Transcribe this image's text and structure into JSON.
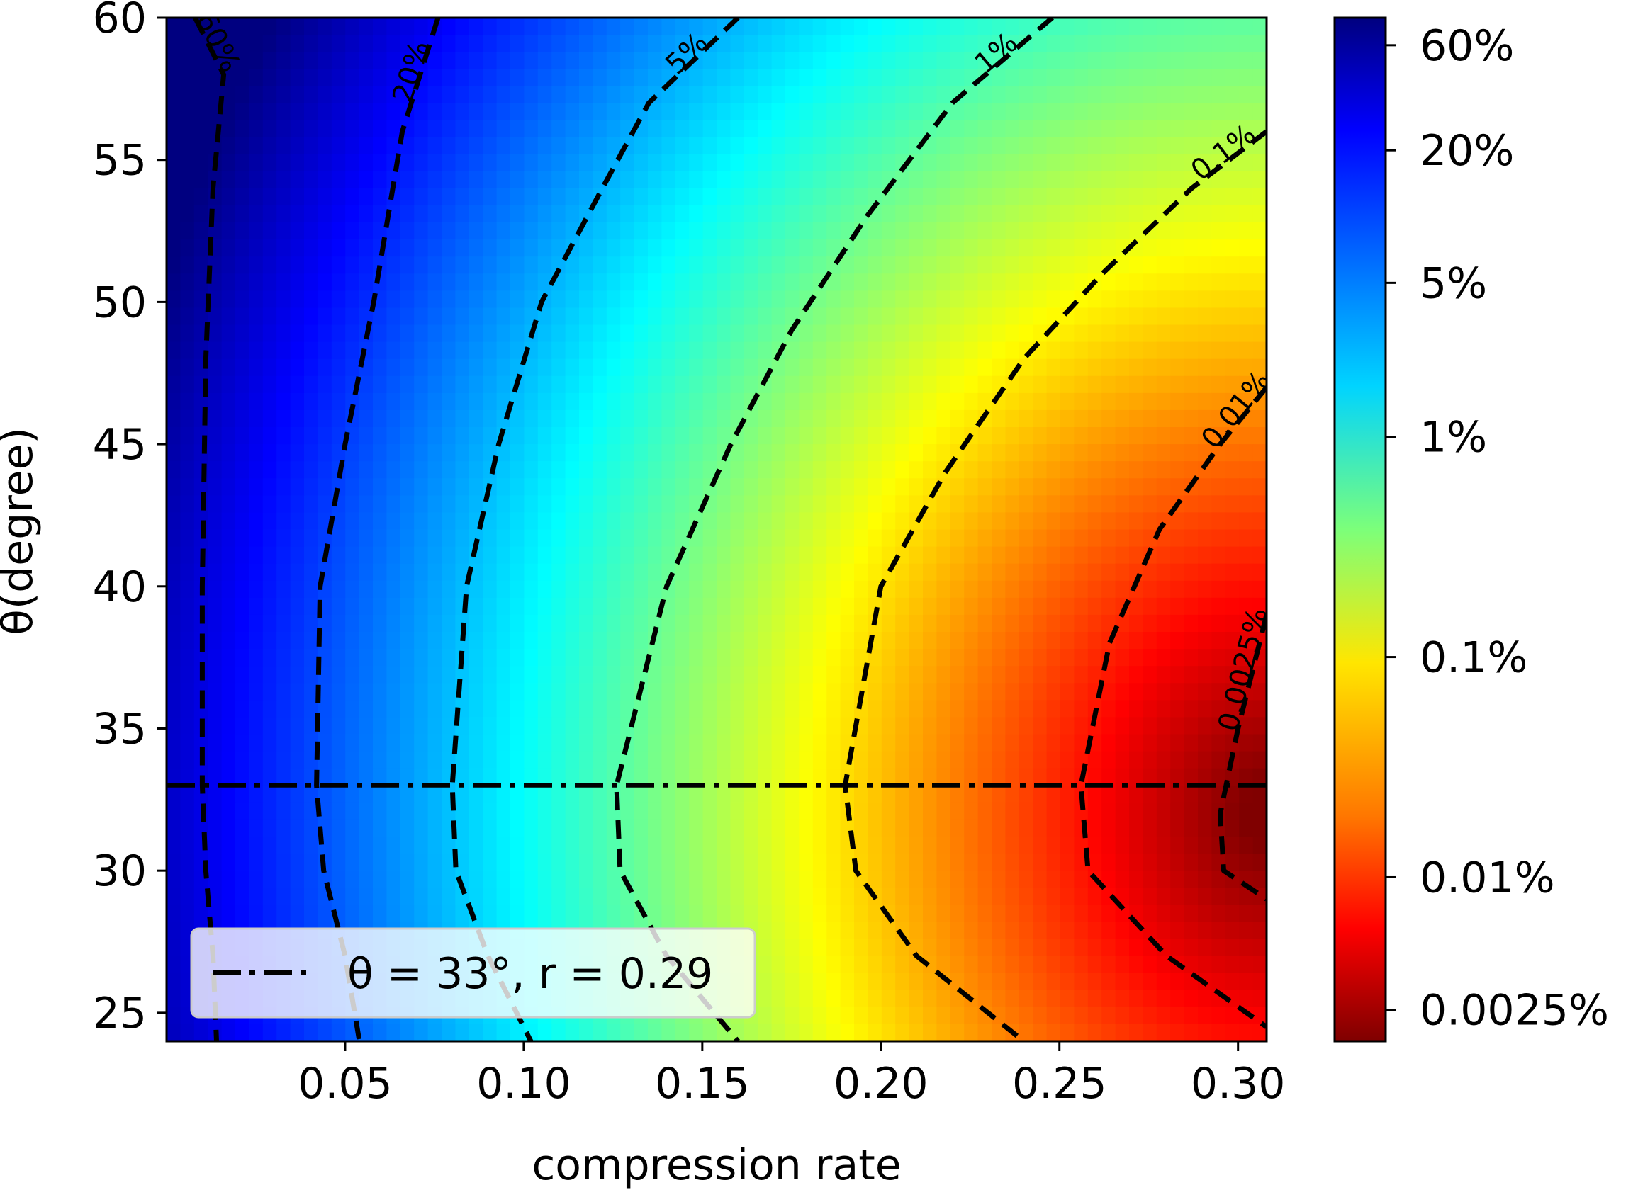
{
  "chart_data": {
    "type": "heatmap",
    "title": "",
    "xlabel": "compression rate",
    "ylabel": "θ(degree)",
    "xlim": [
      0.0,
      0.308
    ],
    "ylim": [
      24,
      60
    ],
    "x_ticks": [
      0.05,
      0.1,
      0.15,
      0.2,
      0.25,
      0.3
    ],
    "x_tick_labels": [
      "0.05",
      "0.10",
      "0.15",
      "0.20",
      "0.25",
      "0.30"
    ],
    "y_ticks": [
      25,
      30,
      35,
      40,
      45,
      50,
      55,
      60
    ],
    "y_tick_labels": [
      "25",
      "30",
      "35",
      "40",
      "45",
      "50",
      "55",
      "60"
    ],
    "colormap": "jet",
    "color_scale": "log",
    "colorbar": {
      "ticks": [
        60,
        20,
        5,
        1,
        0.1,
        0.01,
        0.0025
      ],
      "tick_labels": [
        "60%",
        "20%",
        "5%",
        "1%",
        "0.1%",
        "0.01%",
        "0.0025%"
      ]
    },
    "contour_levels": [
      {
        "label": "60%",
        "points": [
          [
            0.008,
            60
          ],
          [
            0.016,
            58
          ],
          [
            0.013,
            54
          ],
          [
            0.011,
            48
          ],
          [
            0.01,
            40
          ],
          [
            0.01,
            33
          ],
          [
            0.011,
            30
          ],
          [
            0.013,
            27
          ],
          [
            0.014,
            24
          ]
        ]
      },
      {
        "label": "20%",
        "points": [
          [
            0.076,
            60
          ],
          [
            0.066,
            56
          ],
          [
            0.058,
            50
          ],
          [
            0.05,
            45
          ],
          [
            0.043,
            40
          ],
          [
            0.042,
            33
          ],
          [
            0.044,
            30
          ],
          [
            0.05,
            27
          ],
          [
            0.054,
            24
          ]
        ]
      },
      {
        "label": "5%",
        "points": [
          [
            0.16,
            60
          ],
          [
            0.135,
            57
          ],
          [
            0.122,
            54
          ],
          [
            0.105,
            50
          ],
          [
            0.093,
            45
          ],
          [
            0.084,
            40
          ],
          [
            0.08,
            33
          ],
          [
            0.081,
            30
          ],
          [
            0.09,
            27
          ],
          [
            0.102,
            24
          ]
        ]
      },
      {
        "label": "1%",
        "points": [
          [
            0.248,
            60
          ],
          [
            0.22,
            57
          ],
          [
            0.196,
            53
          ],
          [
            0.175,
            49
          ],
          [
            0.158,
            45
          ],
          [
            0.14,
            40
          ],
          [
            0.126,
            33
          ],
          [
            0.127,
            30
          ],
          [
            0.14,
            27
          ],
          [
            0.16,
            24
          ]
        ]
      },
      {
        "label": "0.1%",
        "points": [
          [
            0.308,
            56
          ],
          [
            0.287,
            54
          ],
          [
            0.262,
            51
          ],
          [
            0.24,
            48
          ],
          [
            0.218,
            44
          ],
          [
            0.2,
            40
          ],
          [
            0.19,
            33
          ],
          [
            0.193,
            30
          ],
          [
            0.21,
            27
          ],
          [
            0.24,
            24
          ]
        ]
      },
      {
        "label": "0.01%",
        "points": [
          [
            0.308,
            47
          ],
          [
            0.295,
            45
          ],
          [
            0.278,
            42
          ],
          [
            0.264,
            38
          ],
          [
            0.256,
            33
          ],
          [
            0.258,
            30
          ],
          [
            0.28,
            27
          ],
          [
            0.308,
            24.5
          ]
        ]
      },
      {
        "label": "0.0025%",
        "points": [
          [
            0.308,
            39
          ],
          [
            0.3,
            35
          ],
          [
            0.295,
            32
          ],
          [
            0.296,
            30
          ],
          [
            0.308,
            29
          ]
        ]
      }
    ],
    "reference_line": {
      "theta": 33,
      "style": "dash-dot"
    },
    "legend": {
      "entries": [
        "θ = 33°, r = 0.29"
      ],
      "placement": "lower-left"
    }
  }
}
